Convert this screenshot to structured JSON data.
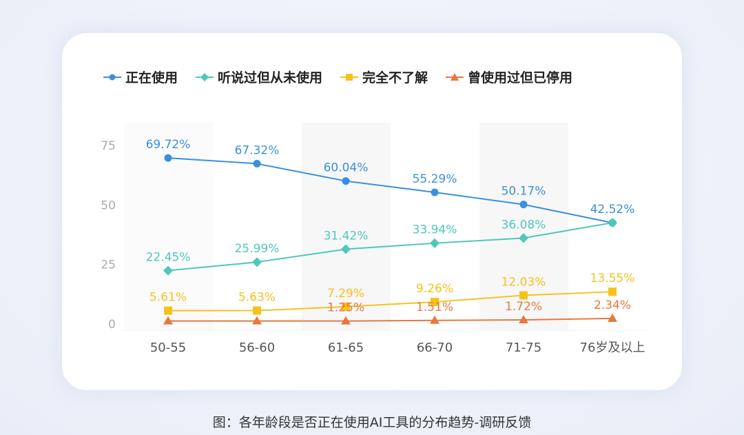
{
  "chart_data": {
    "type": "line",
    "title": "",
    "caption": "图：各年龄段是否正在使用AI工具的分布趋势-调研反馈",
    "categories": [
      "50-55",
      "56-60",
      "61-65",
      "66-70",
      "71-75",
      "76岁及以上"
    ],
    "yticks": [
      "0",
      "25",
      "50",
      "75"
    ],
    "ylim": [
      0,
      75
    ],
    "legend_position": "top",
    "series": [
      {
        "name": "正在使用",
        "color": "#3a8fde",
        "marker": "circle",
        "values": [
          69.72,
          67.32,
          60.04,
          55.29,
          50.17,
          42.52
        ],
        "labels": [
          "69.72%",
          "67.32%",
          "60.04%",
          "55.29%",
          "50.17%",
          "42.52%"
        ]
      },
      {
        "name": "听说过但从未使用",
        "color": "#4dc8b8",
        "marker": "diamond",
        "values": [
          22.45,
          25.99,
          31.42,
          33.94,
          36.08,
          42.52
        ],
        "labels": [
          "22.45%",
          "25.99%",
          "31.42%",
          "33.94%",
          "36.08%",
          ""
        ]
      },
      {
        "name": "完全不了解",
        "color": "#f5c21b",
        "marker": "square",
        "values": [
          5.61,
          5.63,
          7.29,
          9.26,
          12.03,
          13.55
        ],
        "labels": [
          "5.61%",
          "5.63%",
          "7.29%",
          "9.26%",
          "12.03%",
          "13.55%"
        ]
      },
      {
        "name": "曾使用过但已停用",
        "color": "#e8773f",
        "marker": "triangle",
        "values": [
          1.25,
          1.25,
          1.25,
          1.51,
          1.72,
          2.34
        ],
        "labels": [
          "",
          "",
          "1.25%",
          "1.51%",
          "1.72%",
          "2.34%"
        ]
      }
    ]
  }
}
